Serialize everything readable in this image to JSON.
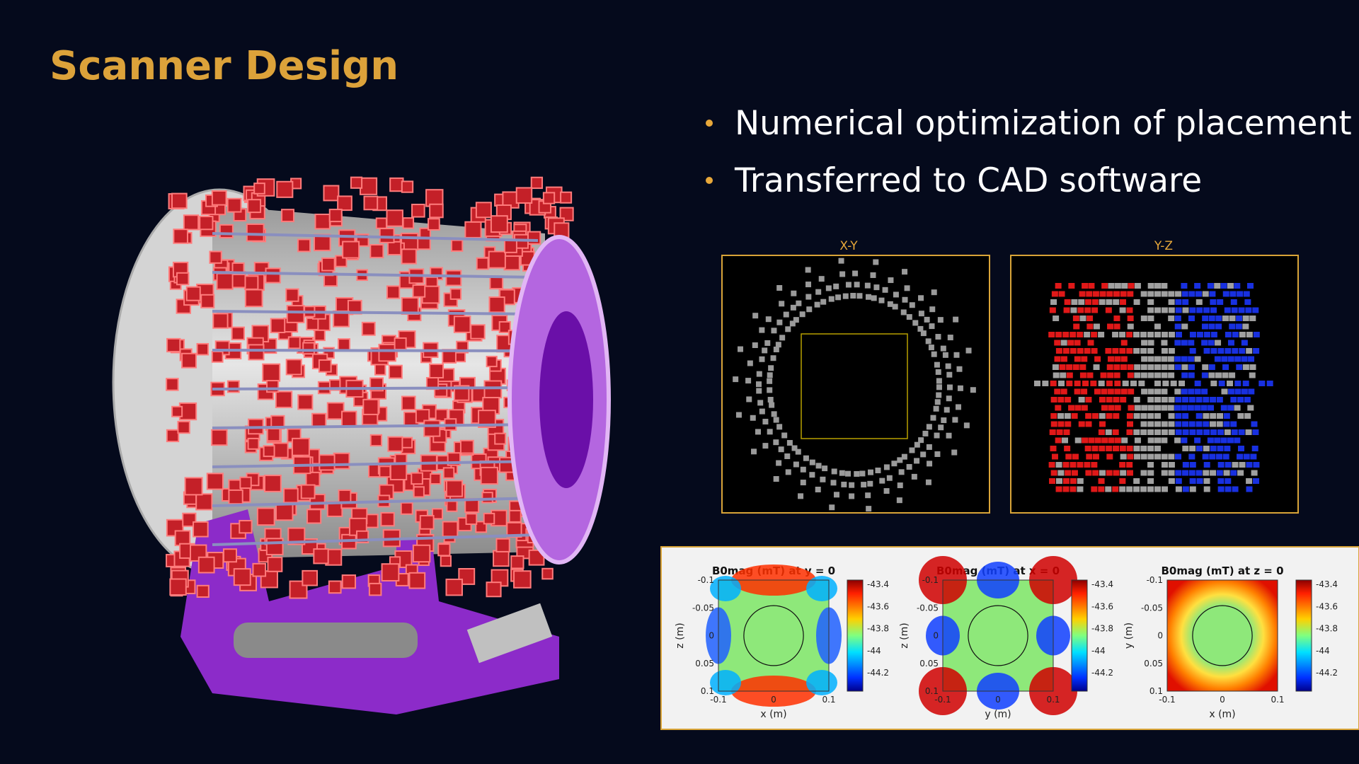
{
  "title": "Scanner Design",
  "bullets": [
    "Numerical optimization of placement",
    "Transferred to CAD software"
  ],
  "panels": [
    {
      "label": "X-Y"
    },
    {
      "label": "Y-Z"
    }
  ],
  "plots": [
    {
      "title": "B0mag (mT) at y = 0",
      "xlabel": "x (m)",
      "ylabel": "z (m)",
      "xticks": [
        -0.1,
        0,
        0.1
      ],
      "yticks": [
        -0.1,
        -0.05,
        0,
        0.05,
        0.1
      ],
      "colorbar_ticks": [
        -43.4,
        -43.6,
        -43.8,
        -44,
        -44.2
      ]
    },
    {
      "title": "B0mag (mT) at x = 0",
      "xlabel": "y (m)",
      "ylabel": "z (m)",
      "xticks": [
        -0.1,
        0,
        0.1
      ],
      "yticks": [
        -0.1,
        -0.05,
        0,
        0.05,
        0.1
      ],
      "colorbar_ticks": [
        -43.4,
        -43.6,
        -43.8,
        -44,
        -44.2
      ]
    },
    {
      "title": "B0mag (mT) at z = 0",
      "xlabel": "x (m)",
      "ylabel": "y (m)",
      "xticks": [
        -0.1,
        0,
        0.1
      ],
      "yticks": [
        -0.1,
        -0.05,
        0,
        0.05,
        0.1
      ],
      "colorbar_ticks": [
        -43.4,
        -43.6,
        -43.8,
        -44,
        -44.2
      ]
    }
  ]
}
